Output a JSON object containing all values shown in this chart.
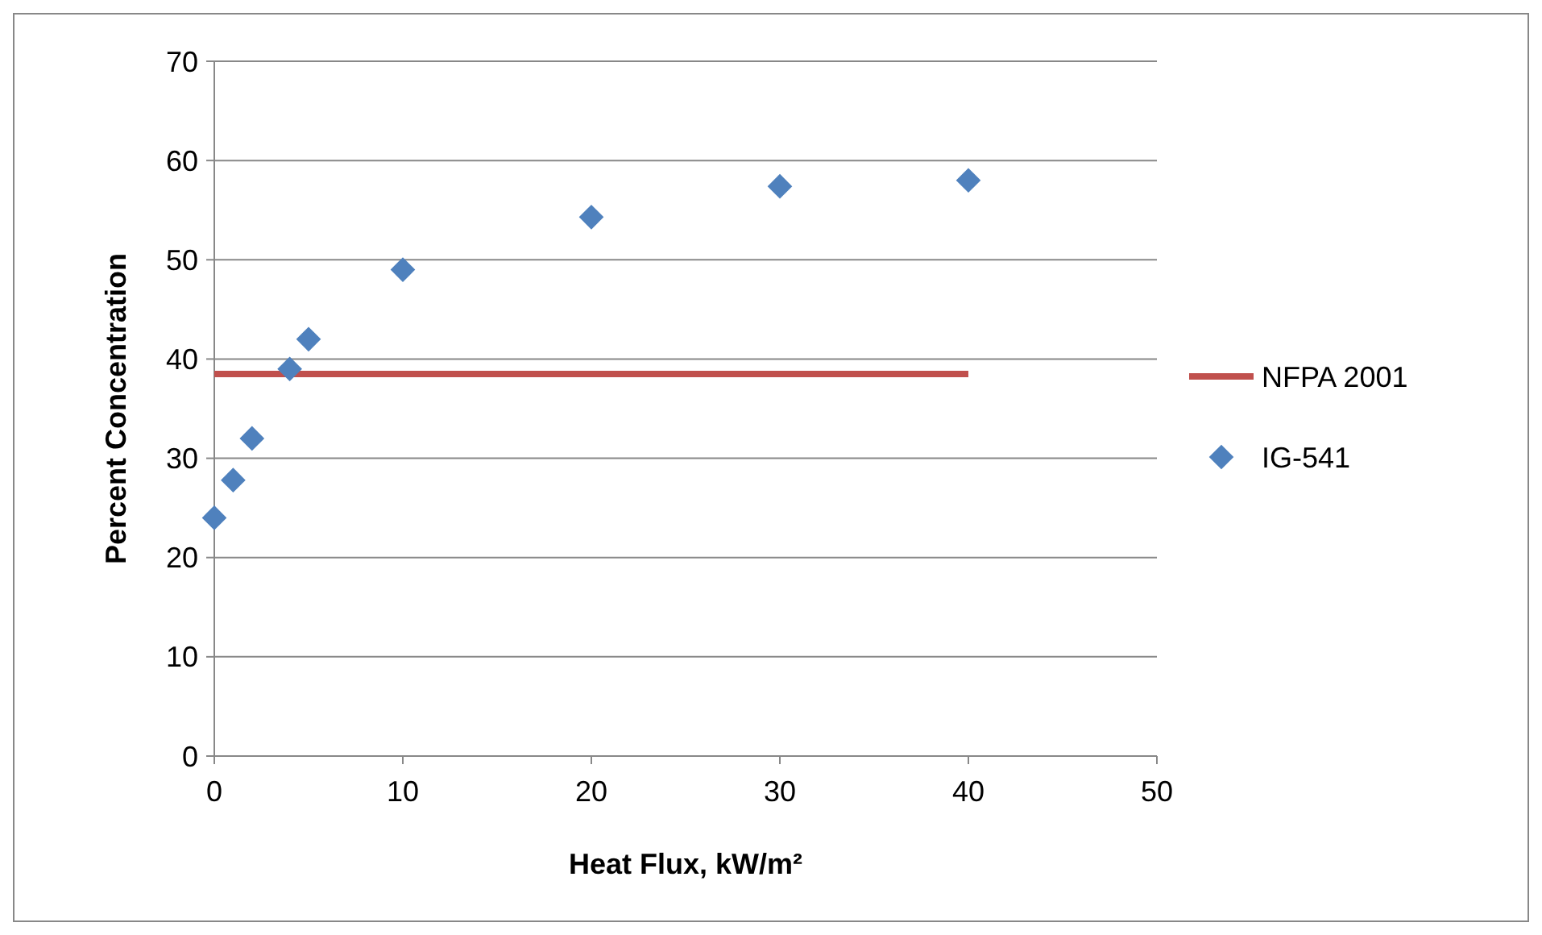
{
  "chart_data": {
    "type": "scatter",
    "xlabel": "Heat Flux, kW/m²",
    "ylabel": "Percent Concentration",
    "xlim": [
      0,
      50
    ],
    "xticks": [
      0,
      10,
      20,
      30,
      40,
      50
    ],
    "ylim": [
      0,
      70
    ],
    "yticks": [
      0,
      10,
      20,
      30,
      40,
      50,
      60,
      70
    ],
    "grid": "y",
    "legend": "right",
    "series": [
      {
        "name": "NFPA 2001",
        "type": "line",
        "color": "#c0504d",
        "x": [
          0,
          40
        ],
        "values": [
          38.5,
          38.5
        ],
        "marker": "none"
      },
      {
        "name": "IG-541",
        "color": "#4f81bd",
        "marker": "diamond",
        "x": [
          0,
          1,
          2,
          4,
          5,
          10,
          20,
          30,
          40
        ],
        "values": [
          24,
          27.8,
          32,
          39,
          42,
          49,
          54.3,
          57.4,
          58
        ]
      }
    ]
  }
}
